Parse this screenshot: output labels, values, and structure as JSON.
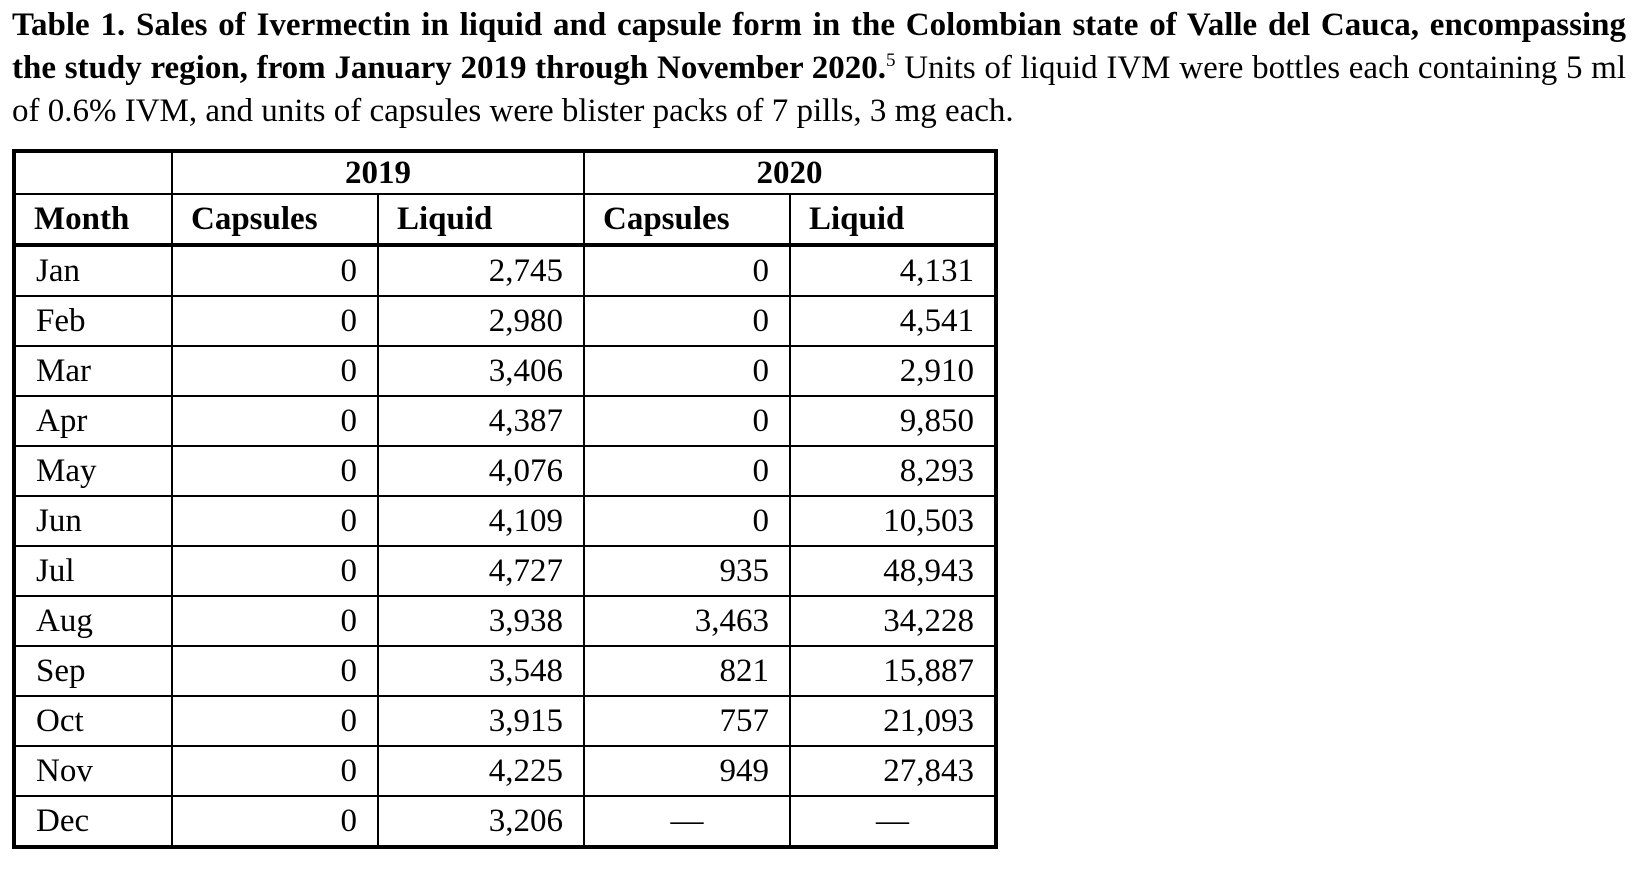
{
  "caption": {
    "label": "Table 1.",
    "title_bold": " Sales of Ivermectin in liquid and capsule form in the Colombian state of Valle del Cauca, encompassing the study region, from January 2019 through November 2020.",
    "footnote_ref": "5",
    "description": " Units of liquid IVM were bottles each containing 5 ml of 0.6% IVM, and units of capsules were blister packs of 7 pills, 3 mg each."
  },
  "table": {
    "year_headers": [
      "2019",
      "2020"
    ],
    "columns": [
      "Month",
      "Capsules",
      "Liquid",
      "Capsules",
      "Liquid"
    ],
    "rows": [
      [
        "Jan",
        "0",
        "2,745",
        "0",
        "4,131"
      ],
      [
        "Feb",
        "0",
        "2,980",
        "0",
        "4,541"
      ],
      [
        "Mar",
        "0",
        "3,406",
        "0",
        "2,910"
      ],
      [
        "Apr",
        "0",
        "4,387",
        "0",
        "9,850"
      ],
      [
        "May",
        "0",
        "4,076",
        "0",
        "8,293"
      ],
      [
        "Jun",
        "0",
        "4,109",
        "0",
        "10,503"
      ],
      [
        "Jul",
        "0",
        "4,727",
        "935",
        "48,943"
      ],
      [
        "Aug",
        "0",
        "3,938",
        "3,463",
        "34,228"
      ],
      [
        "Sep",
        "0",
        "3,548",
        "821",
        "15,887"
      ],
      [
        "Oct",
        "0",
        "3,915",
        "757",
        "21,093"
      ],
      [
        "Nov",
        "0",
        "4,225",
        "949",
        "27,843"
      ],
      [
        "Dec",
        "0",
        "3,206",
        "—",
        "—"
      ]
    ]
  }
}
